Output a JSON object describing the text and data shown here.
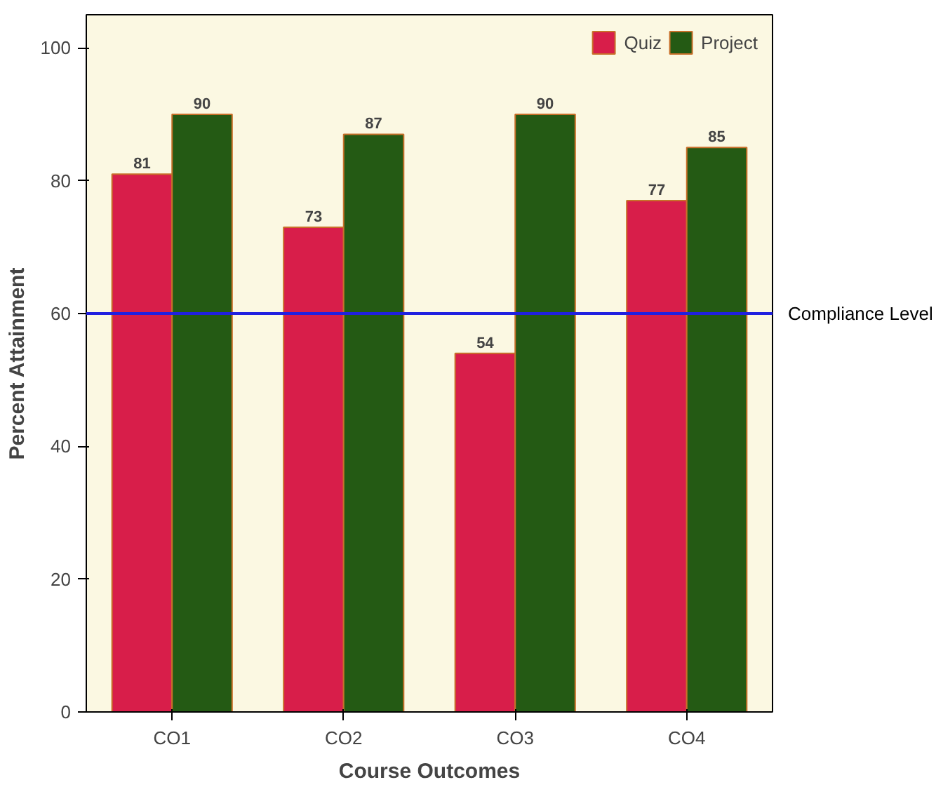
{
  "chart_data": {
    "type": "bar",
    "xlabel": "Course Outcomes",
    "ylabel": "Percent Attainment",
    "categories": [
      "CO1",
      "CO2",
      "CO3",
      "CO4"
    ],
    "series": [
      {
        "name": "Quiz",
        "color": "#d81e4a",
        "values": [
          81,
          73,
          54,
          77
        ]
      },
      {
        "name": "Project",
        "color": "#245a14",
        "values": [
          90,
          87,
          90,
          85
        ]
      }
    ],
    "ylim": [
      0,
      105
    ],
    "yticks": [
      0,
      20,
      40,
      60,
      80,
      100
    ],
    "ref_lines": [
      {
        "axis": "y",
        "value": 60,
        "label": "Compliance Level",
        "color": "#2020e0"
      }
    ],
    "data_labels": true,
    "legend": "top right",
    "grid": false
  }
}
